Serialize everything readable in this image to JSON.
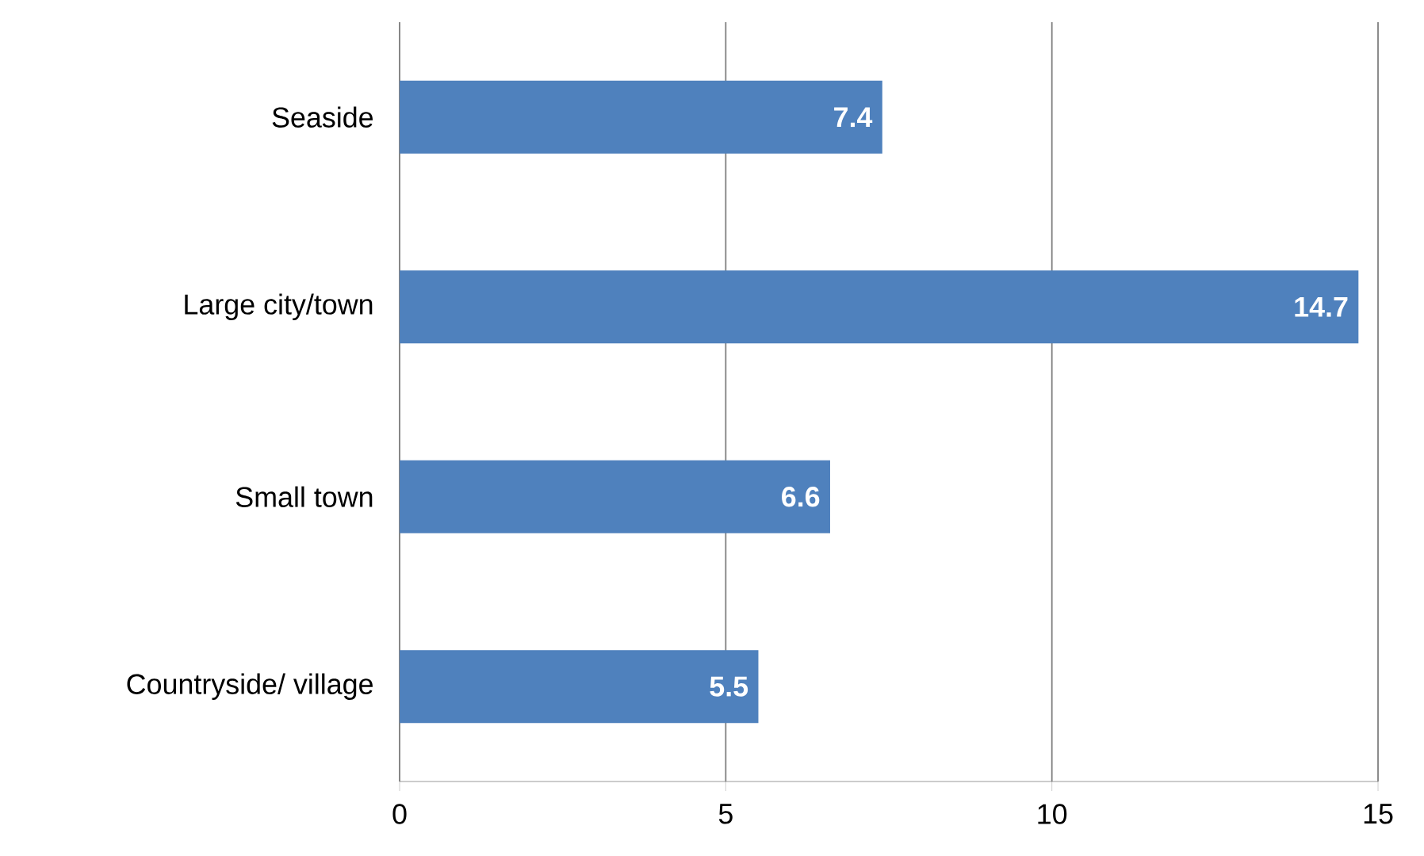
{
  "chart_data": {
    "type": "bar",
    "orientation": "horizontal",
    "categories": [
      "Seaside",
      "Large city/town",
      "Small town",
      "Countryside/ village"
    ],
    "values": [
      7.4,
      14.7,
      6.6,
      5.5
    ],
    "color": "#4f81bd",
    "xlim": [
      0,
      15
    ],
    "xticks": [
      0,
      5,
      10,
      15
    ],
    "grid": "x",
    "data_labels": true
  }
}
